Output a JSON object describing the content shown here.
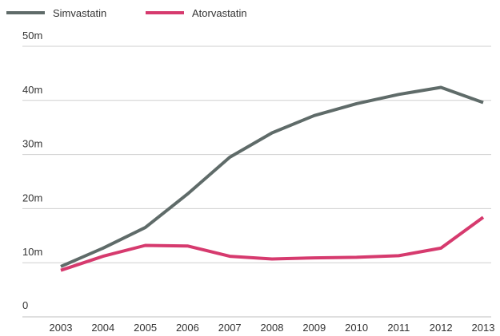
{
  "chart_data": {
    "type": "line",
    "title": "",
    "xlabel": "",
    "ylabel": "",
    "x": [
      "2003",
      "2004",
      "2005",
      "2006",
      "2007",
      "2008",
      "2009",
      "2010",
      "2011",
      "2012",
      "2013"
    ],
    "y_ticks": [
      "0",
      "10m",
      "20m",
      "30m",
      "40m",
      "50m"
    ],
    "y_tick_values": [
      0,
      10,
      20,
      30,
      40,
      50
    ],
    "ylim": [
      0,
      50
    ],
    "grid": true,
    "legend_position": "top-left",
    "series": [
      {
        "name": "Simvastatin",
        "color": "#5f6b69",
        "values": [
          9.3,
          12.7,
          16.5,
          22.7,
          29.5,
          34.0,
          37.2,
          39.4,
          41.1,
          42.4,
          39.6
        ]
      },
      {
        "name": "Atorvastatin",
        "color": "#d63a6e",
        "values": [
          8.6,
          11.2,
          13.2,
          13.1,
          11.2,
          10.7,
          10.9,
          11.0,
          11.3,
          12.7,
          18.4
        ]
      }
    ]
  }
}
